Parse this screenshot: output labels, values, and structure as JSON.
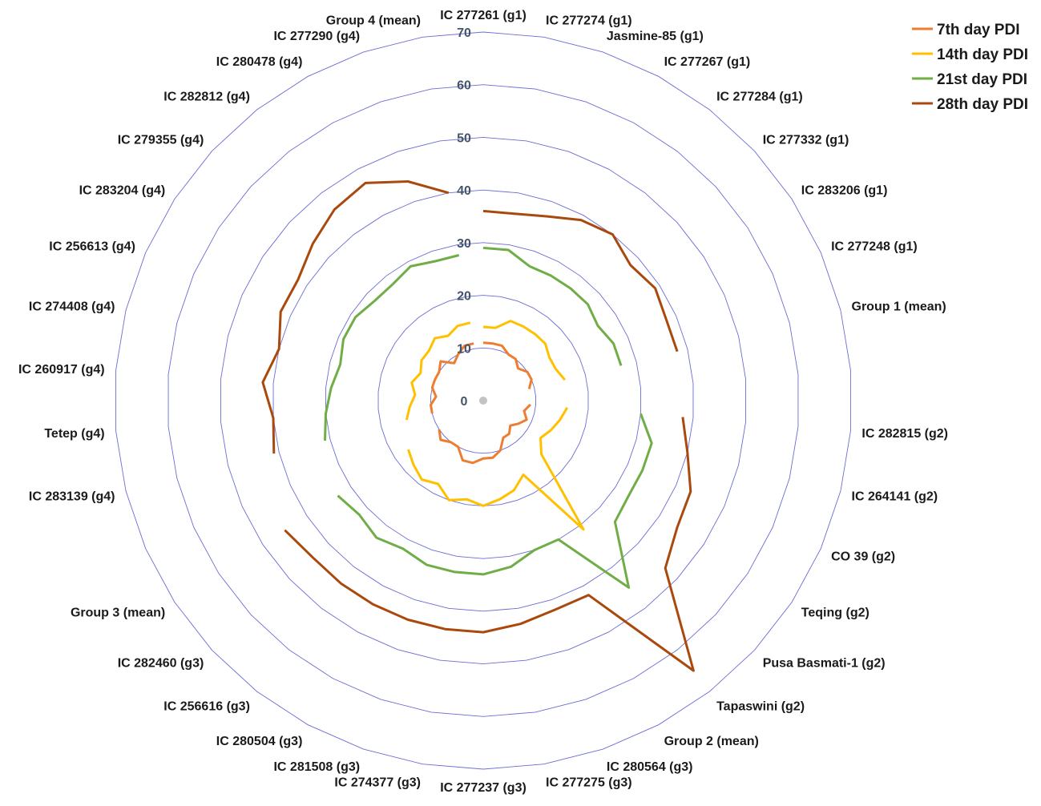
{
  "chart_data": {
    "type": "radar",
    "r_range": [
      0,
      70
    ],
    "r_ticks": [
      0,
      10,
      20,
      30,
      40,
      50,
      60,
      70
    ],
    "grid": true,
    "legend_position": "top-right",
    "categories": [
      "IC 277261 (g1)",
      "IC 277274 (g1)",
      "Jasmine-85 (g1)",
      "IC 277267 (g1)",
      "IC 277284 (g1)",
      "IC 277332 (g1)",
      "IC 283206 (g1)",
      "IC 277248 (g1)",
      "Group 1 (mean)",
      "",
      "IC 282815 (g2)",
      "IC 264141 (g2)",
      "CO 39 (g2)",
      "Teqing (g2)",
      "Pusa Basmati-1 (g2)",
      "Tapaswini (g2)",
      "Group 2 (mean)",
      "IC 280564 (g3)",
      "IC 277275 (g3)",
      "IC 277237 (g3)",
      "IC 274377 (g3)",
      "IC 281508 (g3)",
      "IC 280504 (g3)",
      "IC 256616 (g3)",
      "IC 282460 (g3)",
      "Group 3 (mean)",
      "",
      "IC 283139 (g4)",
      "Tetep (g4)",
      "IC 260917 (g4)",
      "IC 274408 (g4)",
      "IC 256613 (g4)",
      "IC 283204 (g4)",
      "IC 279355 (g4)",
      "IC 282812 (g4)",
      "IC 280478 (g4)",
      "IC 277290 (g4)",
      "Group 4 (mean)"
    ],
    "series": [
      {
        "name": "7th day PDI",
        "color": "#ed7d31",
        "values": [
          11,
          11,
          11,
          10,
          10,
          9,
          10,
          10,
          9,
          null,
          9,
          8,
          9,
          8,
          7,
          8,
          8,
          10,
          11,
          11,
          12,
          12,
          10,
          10,
          11,
          10,
          null,
          10,
          10,
          9,
          10,
          10,
          10,
          11,
          9,
          10,
          11,
          11
        ]
      },
      {
        "name": "14th day PDI",
        "color": "#ffc000",
        "values": [
          14,
          14,
          16,
          16,
          16,
          16,
          15,
          15,
          16,
          null,
          16,
          15,
          14,
          13,
          15,
          31,
          16,
          18,
          19,
          20,
          19,
          20,
          18,
          19,
          18,
          17,
          null,
          15,
          14,
          13,
          14,
          13,
          14,
          14,
          15,
          14,
          15,
          15
        ]
      },
      {
        "name": "21st day PDI",
        "color": "#70ad47",
        "values": [
          29,
          29,
          27,
          27,
          27,
          27,
          26,
          27,
          27,
          null,
          30,
          33,
          33,
          33,
          34,
          45,
          30,
          30,
          32,
          33,
          33,
          33,
          32,
          33,
          32,
          33,
          null,
          31,
          30,
          29,
          28,
          29,
          29,
          28,
          28,
          29,
          28,
          28
        ]
      },
      {
        "name": "28th day PDI",
        "color": "#a9490d",
        "values": [
          36,
          36,
          37,
          39,
          40,
          38,
          39,
          38,
          38,
          null,
          38,
          40,
          43,
          44,
          47,
          65,
          42,
          42,
          43,
          44,
          44,
          44,
          44,
          44,
          44,
          45,
          null,
          41,
          40,
          42,
          40,
          42,
          42,
          44,
          46,
          47,
          44,
          40
        ]
      }
    ]
  }
}
